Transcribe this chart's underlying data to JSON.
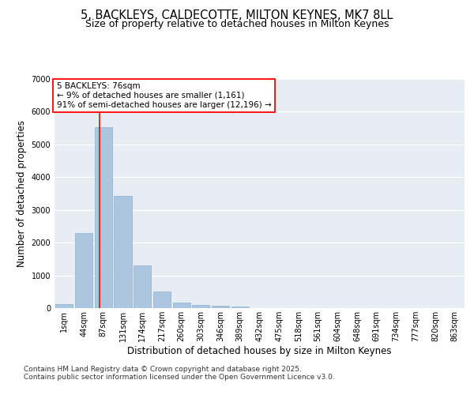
{
  "title1": "5, BACKLEYS, CALDECOTTE, MILTON KEYNES, MK7 8LL",
  "title2": "Size of property relative to detached houses in Milton Keynes",
  "xlabel": "Distribution of detached houses by size in Milton Keynes",
  "ylabel": "Number of detached properties",
  "categories": [
    "1sqm",
    "44sqm",
    "87sqm",
    "131sqm",
    "174sqm",
    "217sqm",
    "260sqm",
    "303sqm",
    "346sqm",
    "389sqm",
    "432sqm",
    "475sqm",
    "518sqm",
    "561sqm",
    "604sqm",
    "648sqm",
    "691sqm",
    "734sqm",
    "777sqm",
    "820sqm",
    "863sqm"
  ],
  "values": [
    130,
    2300,
    5520,
    3420,
    1310,
    500,
    175,
    100,
    75,
    45,
    5,
    0,
    0,
    0,
    0,
    0,
    0,
    0,
    0,
    0,
    0
  ],
  "bar_color": "#adc6e0",
  "bar_edgecolor": "#8ab0d0",
  "bg_color": "#e8edf4",
  "red_line_x": 1.82,
  "annotation_text": "5 BACKLEYS: 76sqm\n← 9% of detached houses are smaller (1,161)\n91% of semi-detached houses are larger (12,196) →",
  "ylim": [
    0,
    7000
  ],
  "yticks": [
    0,
    1000,
    2000,
    3000,
    4000,
    5000,
    6000,
    7000
  ],
  "footnote1": "Contains HM Land Registry data © Crown copyright and database right 2025.",
  "footnote2": "Contains public sector information licensed under the Open Government Licence v3.0.",
  "title1_fontsize": 10.5,
  "title2_fontsize": 9,
  "annot_fontsize": 7.5,
  "tick_fontsize": 7,
  "ylabel_fontsize": 8.5,
  "xlabel_fontsize": 8.5,
  "footnote_fontsize": 6.5
}
